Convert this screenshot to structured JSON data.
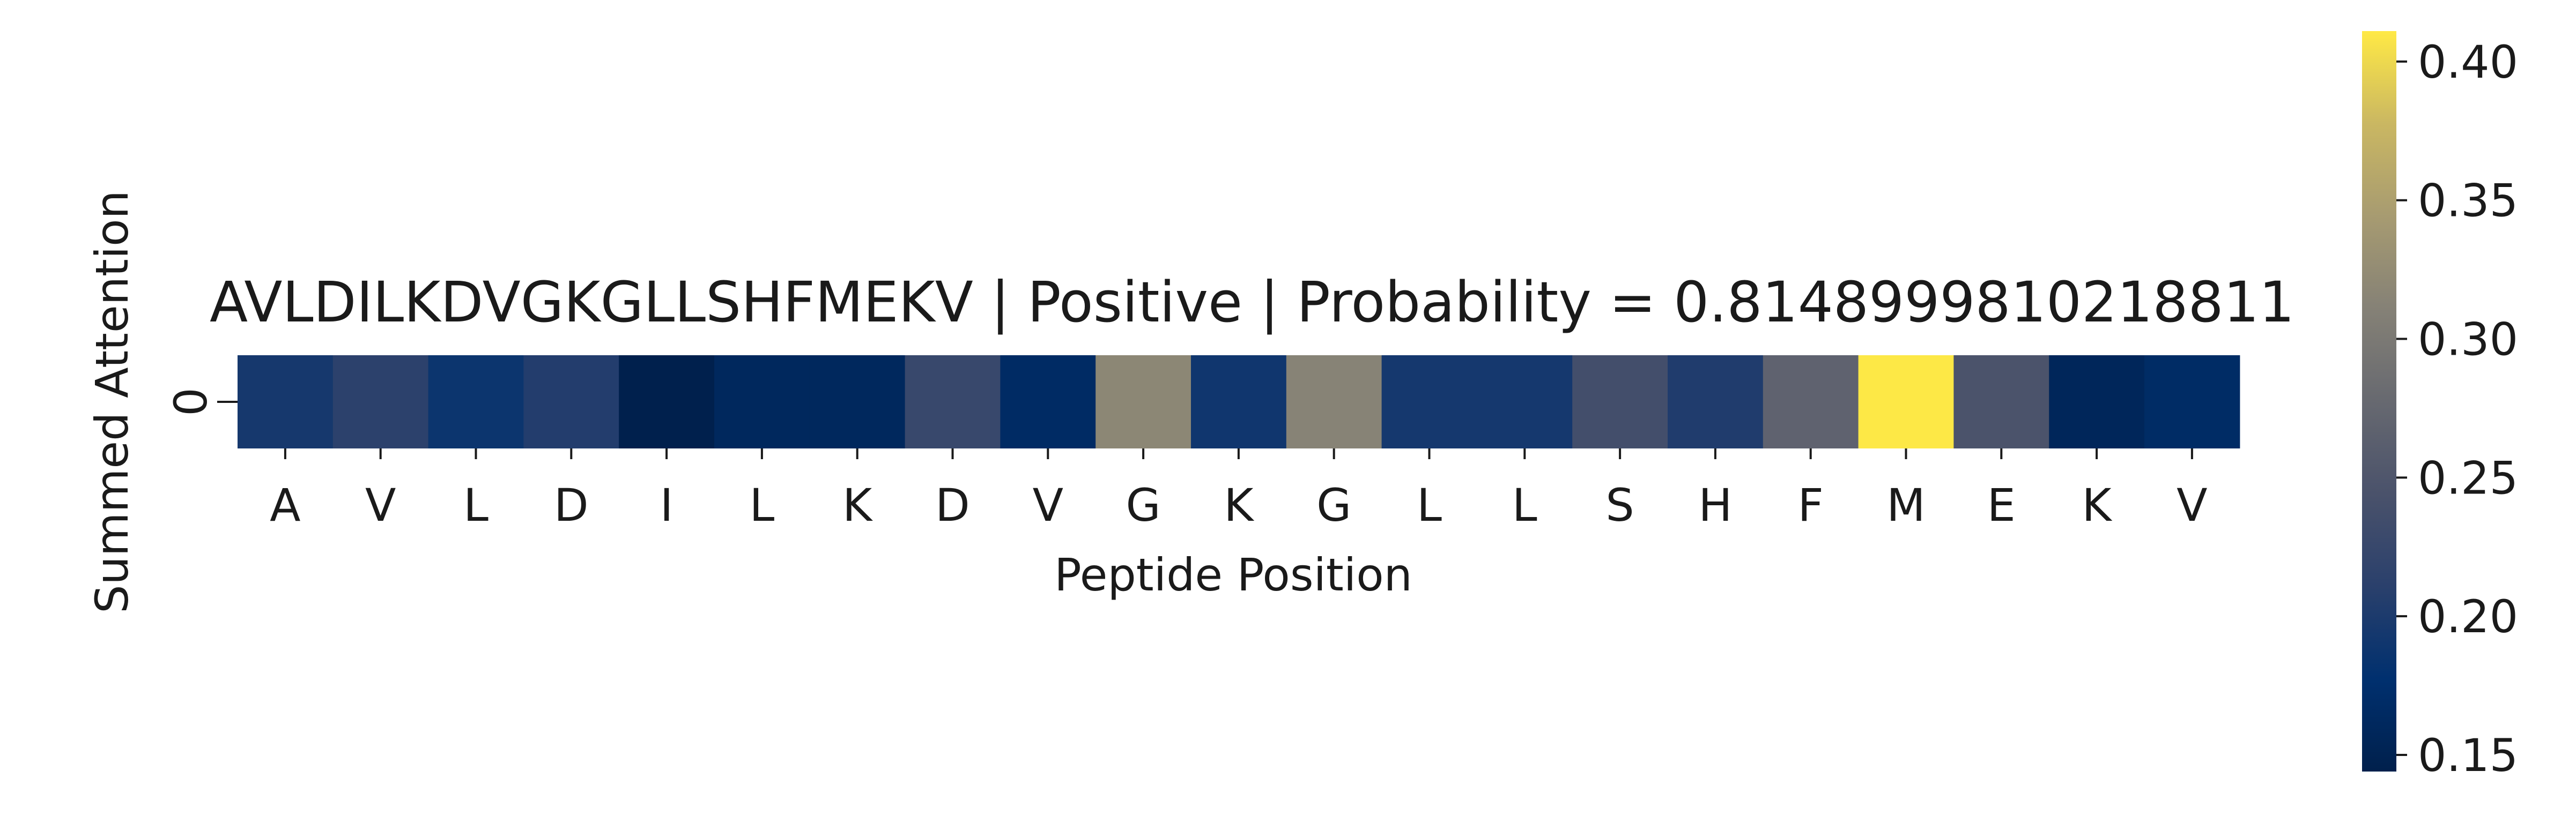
{
  "chart_data": {
    "type": "heatmap",
    "title": "AVLDILKDVGKGLLSHFMEKV | Positive | Probability = 0.8148999810218811",
    "xlabel": "Peptide Position",
    "ylabel": "Summed Attention",
    "row_labels": [
      "0"
    ],
    "categories": [
      "A",
      "V",
      "L",
      "D",
      "I",
      "L",
      "K",
      "D",
      "V",
      "G",
      "K",
      "G",
      "L",
      "L",
      "S",
      "H",
      "F",
      "M",
      "E",
      "K",
      "V"
    ],
    "values": [
      0.195,
      0.213,
      0.187,
      0.205,
      0.145,
      0.16,
      0.16,
      0.225,
      0.167,
      0.318,
      0.19,
      0.313,
      0.194,
      0.194,
      0.237,
      0.203,
      0.268,
      0.41,
      0.245,
      0.157,
      0.168
    ],
    "colorscale": "cividis",
    "colorbar": {
      "min": 0.144,
      "max": 0.411,
      "ticks": [
        "0.15",
        "0.20",
        "0.25",
        "0.30",
        "0.35",
        "0.40"
      ]
    }
  }
}
